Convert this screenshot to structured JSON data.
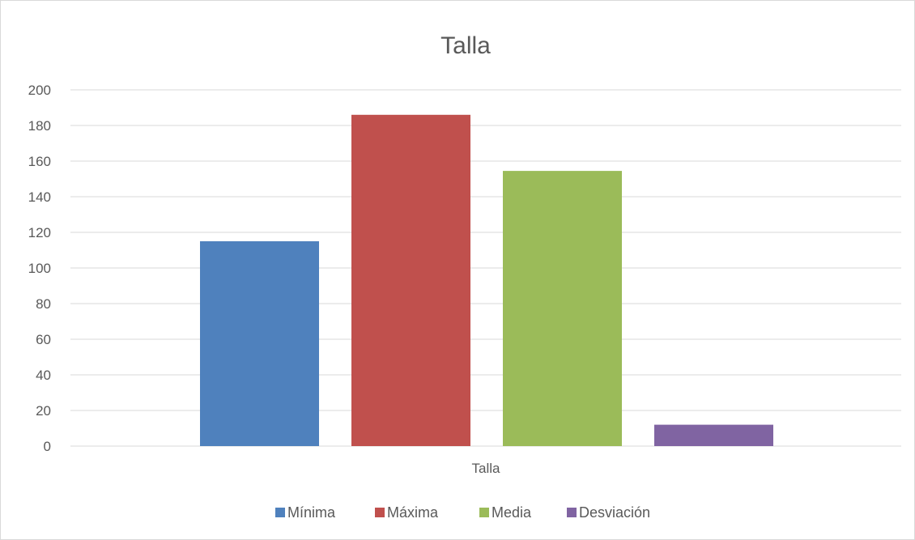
{
  "chart_data": {
    "type": "bar",
    "title": "Talla",
    "categories": [
      "Talla"
    ],
    "series": [
      {
        "name": "Mínima",
        "values": [
          115
        ],
        "color": "#4f81bd"
      },
      {
        "name": "Máxima",
        "values": [
          186
        ],
        "color": "#c0504d"
      },
      {
        "name": "Media",
        "values": [
          154.5
        ],
        "color": "#9bbb59"
      },
      {
        "name": "Desviación",
        "values": [
          12
        ],
        "color": "#8064a2"
      }
    ],
    "ylim": [
      0,
      200
    ],
    "yticks": [
      0,
      20,
      40,
      60,
      80,
      100,
      120,
      140,
      160,
      180,
      200
    ],
    "grid": true,
    "legend_position": "bottom",
    "gridline_color": "#d9d9d9",
    "text_color": "#595959"
  }
}
